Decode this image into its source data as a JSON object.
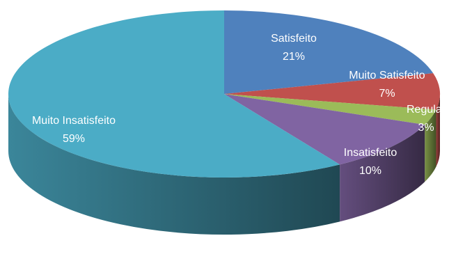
{
  "chart_data": {
    "type": "pie",
    "style": "3d",
    "title": "",
    "slices": [
      {
        "label": "Satisfeito",
        "value": 21,
        "value_label": "21%",
        "color": "#4F81BD"
      },
      {
        "label": "Muito Satisfeito",
        "value": 7,
        "value_label": "7%",
        "color": "#C0504D"
      },
      {
        "label": "Regular",
        "value": 3,
        "value_label": "3%",
        "color": "#9BBB59"
      },
      {
        "label": "Insatisfeito",
        "value": 10,
        "value_label": "10%",
        "color": "#8064A2"
      },
      {
        "label": "Muito Insatisfeito",
        "value": 59,
        "value_label": "59%",
        "color": "#4BACC6"
      }
    ],
    "legend": "none",
    "start_angle_deg": 90,
    "direction": "clockwise"
  }
}
